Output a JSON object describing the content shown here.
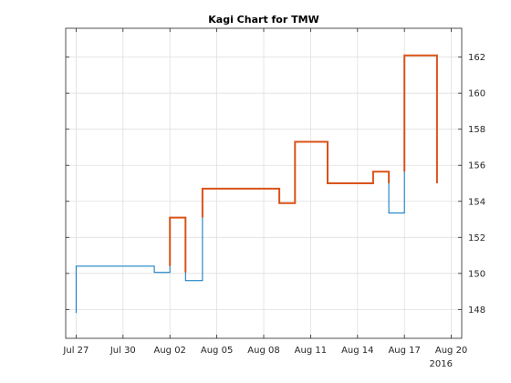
{
  "chart_data": {
    "type": "line",
    "subtype": "kagi",
    "title": "Kagi Chart for TMW",
    "xlabel": "",
    "ylabel": "",
    "x_secondary_label": "2016",
    "x_ticks": [
      "Jul 27",
      "Jul 30",
      "Aug 02",
      "Aug 05",
      "Aug 08",
      "Aug 11",
      "Aug 14",
      "Aug 17",
      "Aug 20"
    ],
    "y_ticks": [
      148,
      150,
      152,
      154,
      156,
      158,
      160,
      162
    ],
    "xlim": [
      "2016-07-26 08:00",
      "2016-08-20 16:00"
    ],
    "ylim": [
      146.4,
      163.6
    ],
    "y_axis_position": "right",
    "grid": true,
    "colors": {
      "yang": "#d95319",
      "yin": "#0072bd"
    },
    "series": [
      {
        "points": [
          [
            "2016-07-27 00:00",
            147.8
          ],
          [
            "2016-07-27 00:00",
            150.4
          ],
          [
            "2016-08-01 00:00",
            150.4
          ],
          [
            "2016-08-01 00:00",
            150.05
          ],
          [
            "2016-08-02 00:00",
            150.05
          ],
          [
            "2016-08-02 00:00",
            153.1
          ],
          [
            "2016-08-03 00:00",
            153.1
          ],
          [
            "2016-08-03 00:00",
            149.6
          ],
          [
            "2016-08-04 02:00",
            149.6
          ],
          [
            "2016-08-04 02:00",
            154.7
          ],
          [
            "2016-08-09 00:00",
            154.7
          ],
          [
            "2016-08-09 00:00",
            153.9
          ],
          [
            "2016-08-10 00:00",
            153.9
          ],
          [
            "2016-08-10 00:00",
            157.3
          ],
          [
            "2016-08-12 02:00",
            157.3
          ],
          [
            "2016-08-12 02:00",
            155.0
          ],
          [
            "2016-08-15 00:00",
            155.0
          ],
          [
            "2016-08-15 00:00",
            155.65
          ],
          [
            "2016-08-16 00:00",
            155.65
          ],
          [
            "2016-08-16 00:00",
            153.35
          ],
          [
            "2016-08-17 00:00",
            153.35
          ],
          [
            "2016-08-17 00:00",
            162.1
          ],
          [
            "2016-08-19 02:00",
            162.1
          ],
          [
            "2016-08-19 02:00",
            155.0
          ]
        ]
      }
    ]
  }
}
